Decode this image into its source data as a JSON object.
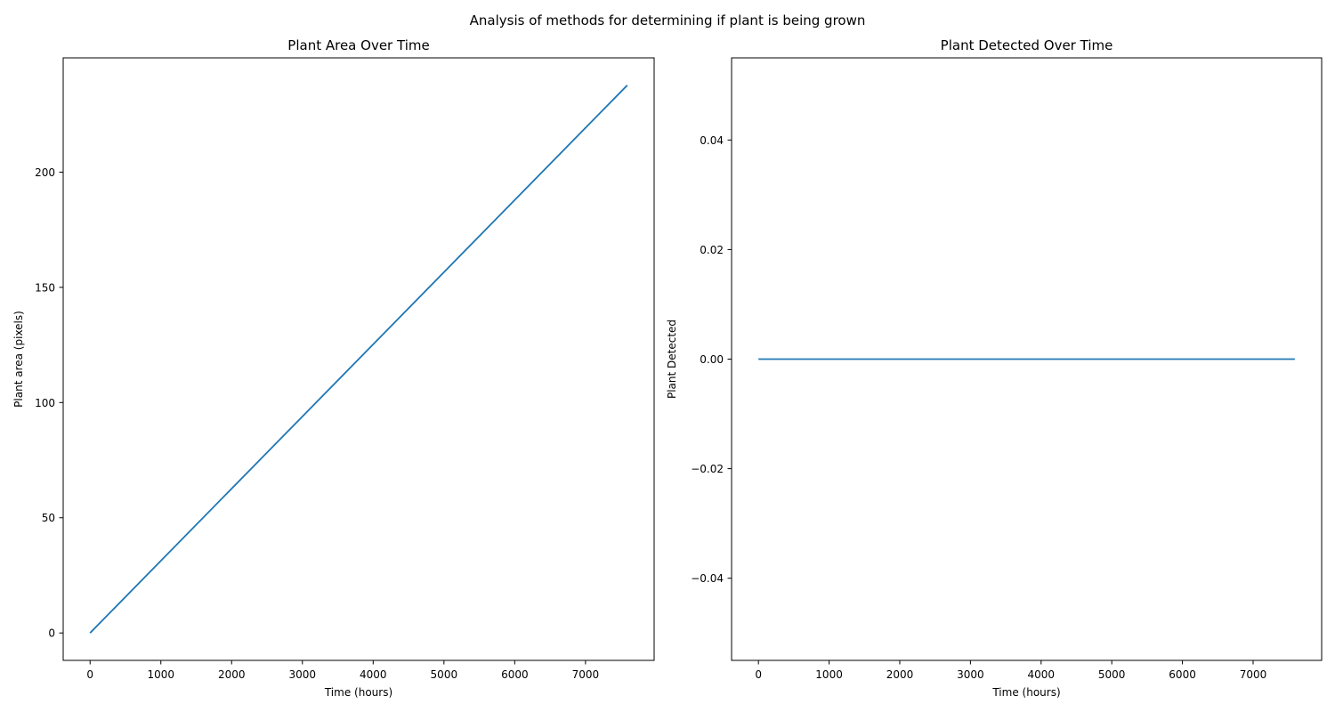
{
  "figure": {
    "suptitle": "Analysis of methods for determining if plant is being grown"
  },
  "chart_data": [
    {
      "type": "line",
      "title": "Plant Area Over Time",
      "xlabel": "Time (hours)",
      "ylabel": "Plant area (pixels)",
      "xlim": [
        -380,
        7970
      ],
      "ylim": [
        -11.9,
        249.6
      ],
      "xticks": [
        0,
        1000,
        2000,
        3000,
        4000,
        5000,
        6000,
        7000
      ],
      "xtick_labels": [
        "0",
        "1000",
        "2000",
        "3000",
        "4000",
        "5000",
        "6000",
        "7000"
      ],
      "yticks": [
        0,
        50,
        100,
        150,
        200
      ],
      "ytick_labels": [
        "0",
        "50",
        "100",
        "150",
        "200"
      ],
      "grid": false,
      "series": [
        {
          "color": "#1f77b4",
          "x": [
            0,
            7590
          ],
          "values": [
            0,
            237.7
          ]
        }
      ]
    },
    {
      "type": "line",
      "title": "Plant Detected Over Time",
      "xlabel": "Time (hours)",
      "ylabel": "Plant Detected",
      "xlim": [
        -380,
        7970
      ],
      "ylim": [
        -0.055,
        0.055
      ],
      "xticks": [
        0,
        1000,
        2000,
        3000,
        4000,
        5000,
        6000,
        7000
      ],
      "xtick_labels": [
        "0",
        "1000",
        "2000",
        "3000",
        "4000",
        "5000",
        "6000",
        "7000"
      ],
      "yticks": [
        -0.04,
        -0.02,
        0.0,
        0.02,
        0.04
      ],
      "ytick_labels": [
        "−0.04",
        "−0.02",
        "0.00",
        "0.02",
        "0.04"
      ],
      "grid": false,
      "series": [
        {
          "color": "#1f77b4",
          "x": [
            0,
            7590
          ],
          "values": [
            0,
            0
          ]
        }
      ]
    }
  ]
}
